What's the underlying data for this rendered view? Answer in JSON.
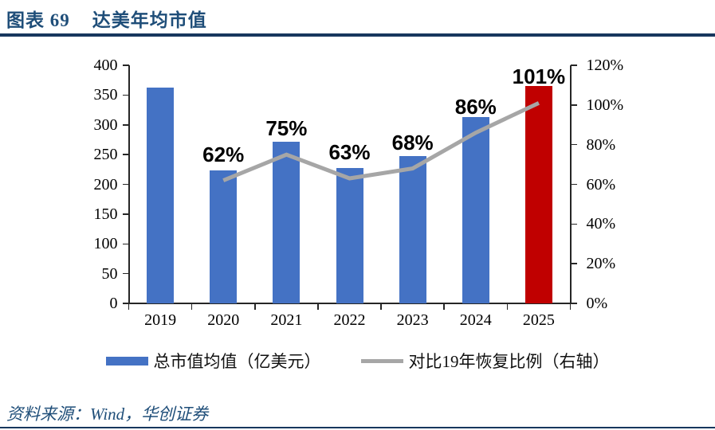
{
  "header": {
    "figure_label": "图表 69",
    "title": "达美年均市值"
  },
  "source": {
    "text": "资料来源：Wind，华创证券"
  },
  "colors": {
    "bar_blue": "#4472C4",
    "bar_red": "#C00000",
    "line_gray": "#A6A6A6",
    "rule_navy": "#17375E",
    "title_blue": "#1F4E79",
    "axis_color": "#262626"
  },
  "legend": {
    "items": [
      {
        "swatch": "bar",
        "label": "总市值均值（亿美元）"
      },
      {
        "swatch": "line",
        "label": "对比19年恢复比例（右轴）"
      }
    ]
  },
  "chart_data": {
    "type": "bar",
    "subtype": "combo-bar-line-dual-axis",
    "title": "达美年均市值",
    "categories": [
      "2019",
      "2020",
      "2021",
      "2022",
      "2023",
      "2024",
      "2025"
    ],
    "series": [
      {
        "name": "总市值均值（亿美元）",
        "type": "bar",
        "axis": "left",
        "values": [
          363,
          224,
          272,
          228,
          247,
          313,
          365
        ],
        "bar_colors": [
          "#4472C4",
          "#4472C4",
          "#4472C4",
          "#4472C4",
          "#4472C4",
          "#4472C4",
          "#C00000"
        ]
      },
      {
        "name": "对比19年恢复比例（右轴）",
        "type": "line",
        "axis": "right",
        "color": "#A6A6A6",
        "points": [
          {
            "category": "2020",
            "value": 62,
            "label": "62%"
          },
          {
            "category": "2021",
            "value": 75,
            "label": "75%"
          },
          {
            "category": "2022",
            "value": 63,
            "label": "63%"
          },
          {
            "category": "2023",
            "value": 68,
            "label": "68%"
          },
          {
            "category": "2024",
            "value": 86,
            "label": "86%"
          },
          {
            "category": "2025",
            "value": 101,
            "label": "101%"
          }
        ]
      }
    ],
    "left_axis": {
      "min": 0,
      "max": 400,
      "step": 50,
      "tick_labels": [
        "0",
        "50",
        "100",
        "150",
        "200",
        "250",
        "300",
        "350",
        "400"
      ]
    },
    "right_axis": {
      "min": 0,
      "max": 120,
      "step": 20,
      "tick_labels": [
        "0%",
        "20%",
        "40%",
        "60%",
        "80%",
        "100%",
        "120%"
      ]
    },
    "grid": false,
    "legend_position": "bottom"
  }
}
